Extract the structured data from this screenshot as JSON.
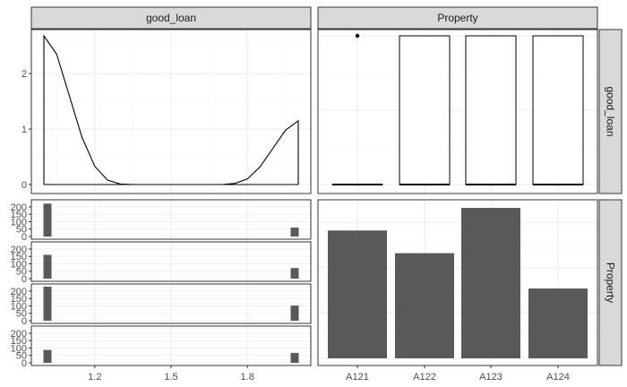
{
  "chart_data": {
    "type": "pairs-matrix",
    "variables": [
      "good_loan",
      "Property"
    ],
    "facet_strips": {
      "top": [
        "good_loan",
        "Property"
      ],
      "right": [
        "good_loan",
        "Property"
      ]
    },
    "x_axis_bottom_left": {
      "ticks": [
        1.2,
        1.5,
        1.8
      ]
    },
    "x_axis_bottom_right": {
      "ticks": [
        "A121",
        "A122",
        "A123",
        "A124"
      ]
    },
    "density_good_loan": {
      "type": "line",
      "xlim": [
        1.0,
        2.0
      ],
      "ylim": [
        0,
        2.7
      ],
      "yticks": [
        0,
        1,
        2
      ],
      "x": [
        1.0,
        1.05,
        1.1,
        1.15,
        1.2,
        1.25,
        1.3,
        1.35,
        1.4,
        1.5,
        1.6,
        1.7,
        1.75,
        1.8,
        1.85,
        1.9,
        1.95,
        2.0
      ],
      "y": [
        2.68,
        2.35,
        1.6,
        0.85,
        0.33,
        0.08,
        0.01,
        0.0,
        0.0,
        0.0,
        0.0,
        0.0,
        0.02,
        0.1,
        0.32,
        0.65,
        0.98,
        1.15
      ]
    },
    "boxplots_good_loan_by_property": {
      "type": "boxplot",
      "categories": [
        "A121",
        "A122",
        "A123",
        "A124"
      ],
      "ylim": [
        0,
        2.7
      ],
      "boxes": [
        {
          "q1": 1.0,
          "q3": 1.0,
          "median": 1.0,
          "outliers": [
            2.0
          ]
        },
        {
          "q1": 1.0,
          "q3": 2.0,
          "median": 1.0,
          "outliers": []
        },
        {
          "q1": 1.0,
          "q3": 2.0,
          "median": 1.0,
          "outliers": []
        },
        {
          "q1": 1.0,
          "q3": 2.0,
          "median": 1.0,
          "outliers": []
        }
      ]
    },
    "faceted_histograms_good_loan_by_property": {
      "type": "bar",
      "xlim": [
        1.0,
        2.0
      ],
      "ylim": [
        0,
        230
      ],
      "yticks": [
        0,
        50,
        100,
        150,
        200
      ],
      "panels": [
        {
          "category": "A121",
          "x": [
            1.0,
            2.0
          ],
          "counts": [
            222,
            60
          ]
        },
        {
          "category": "A122",
          "x": [
            1.0,
            2.0
          ],
          "counts": [
            161,
            71
          ]
        },
        {
          "category": "A123",
          "x": [
            1.0,
            2.0
          ],
          "counts": [
            230,
            102
          ]
        },
        {
          "category": "A124",
          "x": [
            1.0,
            2.0
          ],
          "counts": [
            87,
            67
          ]
        }
      ]
    },
    "bar_property": {
      "type": "bar",
      "categories": [
        "A121",
        "A122",
        "A123",
        "A124"
      ],
      "values": [
        282,
        232,
        332,
        154
      ],
      "ylim": [
        0,
        350
      ]
    }
  }
}
